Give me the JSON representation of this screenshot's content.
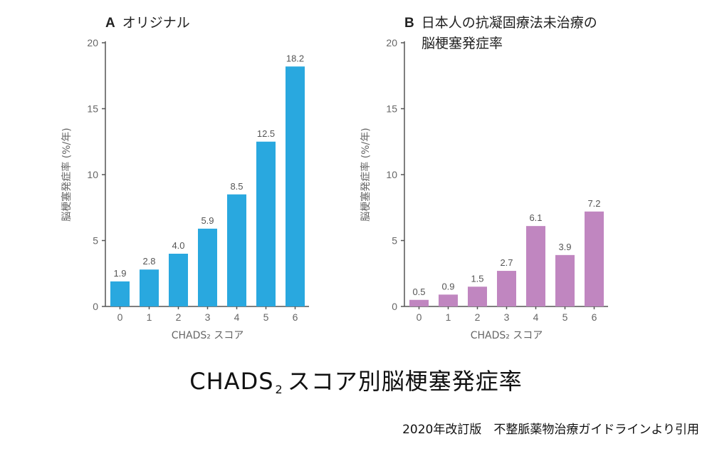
{
  "panels": [
    {
      "letter": "A",
      "title_lines": [
        "オリジナル"
      ],
      "bar_color": "#29a8df"
    },
    {
      "letter": "B",
      "title_lines": [
        "日本人の抗凝固療法未治療の",
        "脳梗塞発症率"
      ],
      "bar_color": "#c086c0"
    }
  ],
  "main_title": {
    "prefix": "CHADS",
    "subscript": "2",
    "suffix": "スコア別脳梗塞発症率"
  },
  "source_note": "2020年改訂版　不整脈薬物治療ガイドラインより引用",
  "chart_data": [
    {
      "type": "bar",
      "title": "オリジナル",
      "categories": [
        "0",
        "1",
        "2",
        "3",
        "4",
        "5",
        "6"
      ],
      "values": [
        1.9,
        2.8,
        4.0,
        5.9,
        8.5,
        12.5,
        18.2
      ],
      "value_labels": [
        "1.9",
        "2.8",
        "4.0",
        "5.9",
        "8.5",
        "12.5",
        "18.2"
      ],
      "xlabel": "CHADS₂ スコア",
      "ylabel": "脳梗塞発症率 (%/年)",
      "ylim": [
        0,
        20
      ],
      "yticks": [
        0,
        5,
        10,
        15,
        20
      ],
      "grid": false
    },
    {
      "type": "bar",
      "title": "日本人の抗凝固療法未治療の脳梗塞発症率",
      "categories": [
        "0",
        "1",
        "2",
        "3",
        "4",
        "5",
        "6"
      ],
      "values": [
        0.5,
        0.9,
        1.5,
        2.7,
        6.1,
        3.9,
        7.2
      ],
      "value_labels": [
        "0.5",
        "0.9",
        "1.5",
        "2.7",
        "6.1",
        "3.9",
        "7.2"
      ],
      "xlabel": "CHADS₂ スコア",
      "ylabel": "脳梗塞発症率 (%/年)",
      "ylim": [
        0,
        20
      ],
      "yticks": [
        0,
        5,
        10,
        15,
        20
      ],
      "grid": false
    }
  ]
}
